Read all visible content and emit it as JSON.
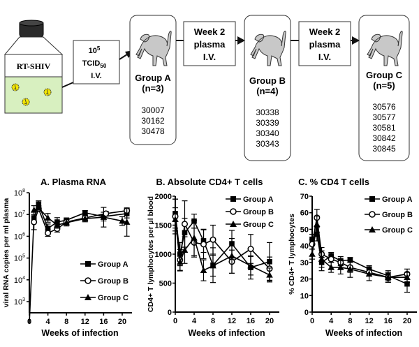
{
  "diagram": {
    "bottle_label": "RT-SHIV",
    "inoculum": {
      "line1_base": "10",
      "line1_sup": "5",
      "line2_base": "TCID",
      "line2_sub": "50",
      "line3": "I.V."
    },
    "transfers": [
      {
        "line1": "Week 2",
        "line2": "plasma",
        "line3": "I.V."
      },
      {
        "line1": "Week 2",
        "line2": "plasma",
        "line3": "I.V."
      }
    ],
    "groups": [
      {
        "name": "Group A",
        "n": "(n=3)",
        "animals": [
          "30007",
          "30162",
          "30478"
        ]
      },
      {
        "name": "Group B",
        "n": "(n=4)",
        "animals": [
          "30338",
          "30339",
          "30340",
          "30343"
        ]
      },
      {
        "name": "Group C",
        "n": "(n=5)",
        "animals": [
          "30576",
          "30577",
          "30581",
          "30842",
          "30845"
        ]
      }
    ],
    "colors": {
      "liquid": "#d8f0c0",
      "virus": "#f2e600",
      "monkey": "#c8c8c8"
    }
  },
  "chart_data": [
    {
      "type": "line",
      "title": "A. Plasma RNA",
      "xlabel": "Weeks of infection",
      "ylabel": "viral RNA copies per ml plasma",
      "yscale": "log",
      "ylim": [
        1000,
        100000000
      ],
      "xlim": [
        0,
        21
      ],
      "xticks": [
        0,
        4,
        8,
        12,
        16,
        20
      ],
      "yticks": [
        {
          "v": 1000,
          "base": "10",
          "exp": "3"
        },
        {
          "v": 10000,
          "base": "10",
          "exp": "4"
        },
        {
          "v": 100000,
          "base": "10",
          "exp": "5"
        },
        {
          "v": 1000000,
          "base": "10",
          "exp": "6"
        },
        {
          "v": 10000000,
          "base": "10",
          "exp": "7"
        },
        {
          "v": 100000000,
          "base": "10",
          "exp": "8"
        }
      ],
      "legend": "center-right",
      "series": [
        {
          "name": "Group A",
          "marker": "square",
          "x": [
            0,
            1,
            2,
            4,
            6,
            8,
            12,
            16,
            21
          ],
          "y": [
            100,
            7000000,
            30000000,
            2300000,
            4500000,
            5500000,
            12000000,
            8000000,
            11000000
          ],
          "err": [
            0,
            0,
            0.15,
            0.2,
            0.2,
            0.1,
            0.1,
            0.2,
            0.2
          ]
        },
        {
          "name": "Group B",
          "marker": "circle",
          "x": [
            1,
            2,
            4,
            6,
            8,
            12,
            16.5,
            21
          ],
          "y": [
            4500000,
            18000000,
            1400000,
            2200000,
            4500000,
            7000000,
            11000000,
            15000000
          ],
          "err": [
            0.35,
            0.1,
            0.15,
            0.15,
            0.1,
            0.1,
            0.1,
            0.1
          ]
        },
        {
          "name": "Group C",
          "marker": "triangle",
          "x": [
            1,
            2,
            4,
            6,
            8,
            12,
            16,
            20,
            21
          ],
          "y": [
            16000000,
            20000000,
            7000000,
            3300000,
            4200000,
            6500000,
            7500000,
            5000000,
            4500000
          ],
          "err": [
            0.2,
            0.1,
            0.2,
            0.15,
            0.15,
            0.15,
            0.45,
            0.2,
            0.65
          ]
        }
      ]
    },
    {
      "type": "line",
      "title": "B. Absolute CD4+ T cells",
      "xlabel": "Weeks of infection",
      "ylabel": "CD4+ T lymphocytes per µl blood",
      "ylim": [
        0,
        2000
      ],
      "xlim": [
        0,
        21
      ],
      "xticks": [
        0,
        4,
        8,
        12,
        16,
        20
      ],
      "yticks": [
        0,
        500,
        1000,
        1500,
        2000
      ],
      "legend": "top-right",
      "series": [
        {
          "name": "Group A",
          "marker": "square",
          "x": [
            0,
            1,
            2,
            4,
            6,
            8,
            12,
            16,
            20
          ],
          "y": [
            1700,
            1000,
            1370,
            1570,
            1230,
            810,
            1180,
            770,
            870
          ],
          "err": [
            250,
            200,
            250,
            120,
            200,
            300,
            230,
            200,
            330
          ]
        },
        {
          "name": "Group B",
          "marker": "circle",
          "x": [
            0,
            1,
            2,
            4,
            6,
            8,
            12,
            16,
            20
          ],
          "y": [
            1650,
            900,
            1520,
            1200,
            1170,
            1250,
            870,
            1090,
            750
          ],
          "err": [
            300,
            180,
            400,
            250,
            250,
            250,
            200,
            250,
            200
          ]
        },
        {
          "name": "Group C",
          "marker": "triangle",
          "x": [
            0,
            1,
            2,
            4,
            6,
            8,
            12,
            16,
            20
          ],
          "y": [
            1600,
            860,
            1070,
            1280,
            720,
            800,
            970,
            800,
            640
          ],
          "err": [
            200,
            150,
            230,
            300,
            180,
            180,
            300,
            160,
            120
          ]
        }
      ]
    },
    {
      "type": "line",
      "title": "C. % CD4 T cells",
      "xlabel": "Weeks of infection",
      "ylabel": "% CD4+ T lymphocytes",
      "ylim": [
        0,
        70
      ],
      "xlim": [
        0,
        21
      ],
      "xticks": [
        0,
        4,
        8,
        12,
        16,
        20
      ],
      "yticks": [
        0,
        10,
        20,
        30,
        40,
        50,
        60,
        70
      ],
      "legend": "top-right",
      "series": [
        {
          "name": "Group A",
          "marker": "square",
          "x": [
            0,
            1,
            2,
            4,
            6,
            8,
            12,
            16,
            20
          ],
          "y": [
            44,
            47,
            30,
            34,
            31,
            31.5,
            26,
            22,
            17
          ],
          "err": [
            3,
            4,
            3,
            2,
            2.5,
            1.5,
            2,
            3,
            5
          ]
        },
        {
          "name": "Group B",
          "marker": "circle",
          "x": [
            0,
            1,
            2,
            4,
            6,
            8,
            12,
            16,
            20
          ],
          "y": [
            41,
            57,
            35,
            32,
            30,
            27,
            24,
            21,
            23
          ],
          "err": [
            3,
            5,
            2,
            2,
            2,
            3,
            2,
            3,
            3
          ]
        },
        {
          "name": "Group C",
          "marker": "triangle",
          "x": [
            0,
            1,
            2,
            4,
            6,
            8,
            12,
            16,
            20
          ],
          "y": [
            35,
            53,
            32,
            27,
            27,
            26,
            23,
            21,
            21
          ],
          "err": [
            3,
            5,
            7,
            3,
            4,
            5,
            4,
            3,
            3
          ]
        }
      ]
    }
  ]
}
